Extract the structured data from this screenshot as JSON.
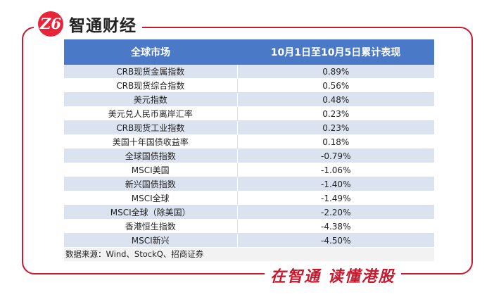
{
  "brand": {
    "logo_glyph": "Z6",
    "name": "智通财经"
  },
  "watermark": "智通财经",
  "table": {
    "headers": [
      "全球市场",
      "10月1日至10月5日累计表现"
    ],
    "rows": [
      {
        "market": "CRB现货金属指数",
        "value": "0.89%"
      },
      {
        "market": "CRB现货综合指数",
        "value": "0.56%"
      },
      {
        "market": "美元指数",
        "value": "0.48%"
      },
      {
        "market": "美元兑人民币离岸汇率",
        "value": "0.23%"
      },
      {
        "market": "CRB现货工业指数",
        "value": "0.23%"
      },
      {
        "market": "美国十年国债收益率",
        "value": "0.18%"
      },
      {
        "market": "全球国债指数",
        "value": "-0.79%"
      },
      {
        "market": "MSCI美国",
        "value": "-1.06%"
      },
      {
        "market": "新兴国债指数",
        "value": "-1.40%"
      },
      {
        "market": "MSCI全球",
        "value": "-1.49%"
      },
      {
        "market": "MSCI全球（除美国）",
        "value": "-2.20%"
      },
      {
        "market": "香港恒生指数",
        "value": "-4.38%"
      },
      {
        "market": "MSCI新兴",
        "value": "-4.50%"
      }
    ],
    "source": "数据来源：Wind、StockQ、招商证券"
  },
  "slogan": "在智通  读懂港股",
  "colors": {
    "frame": "#c8192e",
    "header": "#4a79c8",
    "stripe": "#dbe3f1"
  }
}
